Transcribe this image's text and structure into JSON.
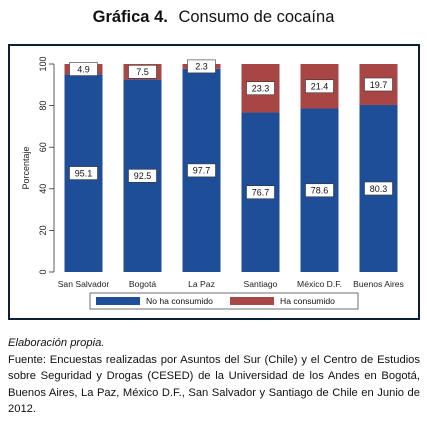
{
  "header": {
    "number": "Gráfica 4.",
    "title": "Consumo de cocaína"
  },
  "chart_data": {
    "type": "bar",
    "stacked": true,
    "orientation": "vertical",
    "categories": [
      "San Salvador",
      "Bogotá",
      "La Paz",
      "Santiago",
      "México D.F.",
      "Buenos Aires"
    ],
    "series": [
      {
        "name": "No ha consumido",
        "color": "#1f4e98",
        "values": [
          95.1,
          92.5,
          97.7,
          76.7,
          78.6,
          80.3
        ]
      },
      {
        "name": "Ha consumido",
        "color": "#a84545",
        "values": [
          4.9,
          7.5,
          2.3,
          23.3,
          21.4,
          19.7
        ]
      }
    ],
    "ylabel": "Porcentaje",
    "ylim": [
      0,
      100
    ],
    "yticks": [
      0,
      20,
      40,
      60,
      80,
      100
    ],
    "legend": "bottom",
    "grid": false
  },
  "notes": {
    "credit": "Elaboración propia.",
    "source": "Fuente: Encuestas realizadas por Asuntos del Sur (Chile) y el Centro de Estudios sobre Seguridad y Drogas (CESED) de la Universidad de los Andes en Bogotá, Buenos Aires, La Paz,  México D.F., San Salvador y Santiago de Chile en Junio de 2012."
  }
}
